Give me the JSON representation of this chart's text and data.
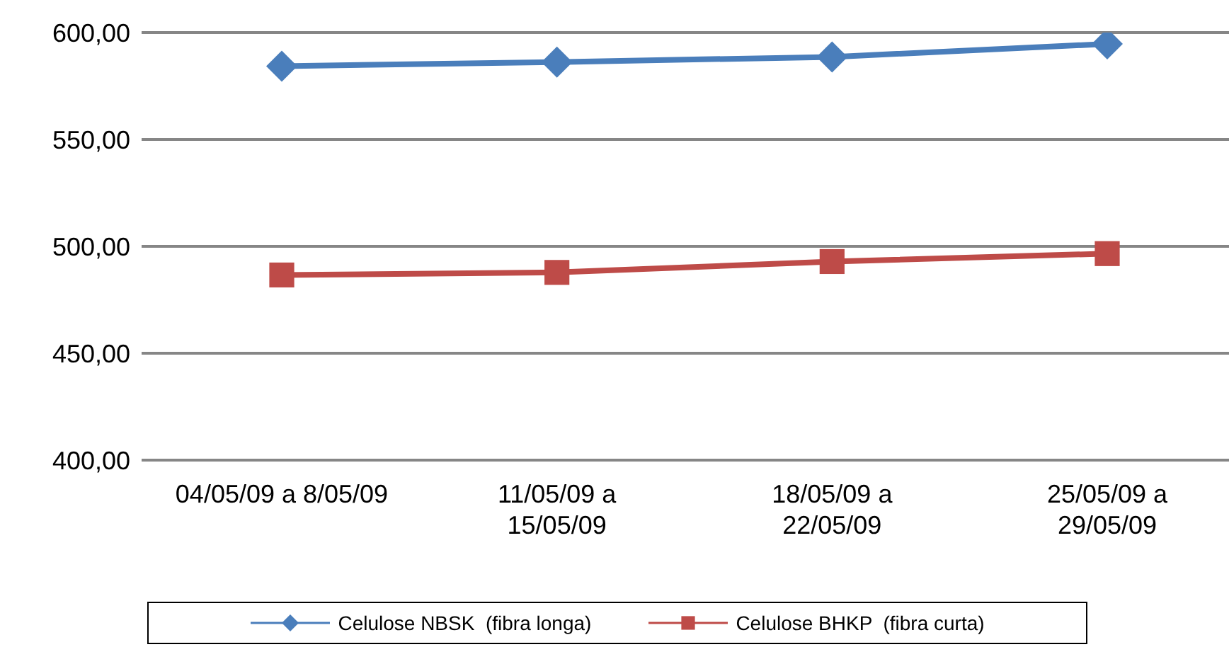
{
  "chart_data": {
    "type": "line",
    "categories": [
      "04/05/09 a 8/05/09",
      "11/05/09 a 15/05/09",
      "18/05/09 a 22/05/09",
      "25/05/09 a 29/05/09"
    ],
    "series": [
      {
        "name": "Celulose NBSK  (fibra longa)",
        "color": "#4a7ebb",
        "values": [
          584.3,
          586.2,
          588.6,
          594.7
        ],
        "marker": "diamond"
      },
      {
        "name": "Celulose BHKP  (fibra curta)",
        "color": "#be4b48",
        "values": [
          486.6,
          487.8,
          492.9,
          496.6
        ],
        "marker": "square"
      }
    ],
    "ylim": [
      400,
      600
    ],
    "yticks": [
      {
        "value": 400,
        "label": "400,00"
      },
      {
        "value": 450,
        "label": "450,00"
      },
      {
        "value": 500,
        "label": "500,00"
      },
      {
        "value": 550,
        "label": "550,00"
      },
      {
        "value": 600,
        "label": "600,00"
      }
    ],
    "grid": "y",
    "legend": "bottom"
  }
}
